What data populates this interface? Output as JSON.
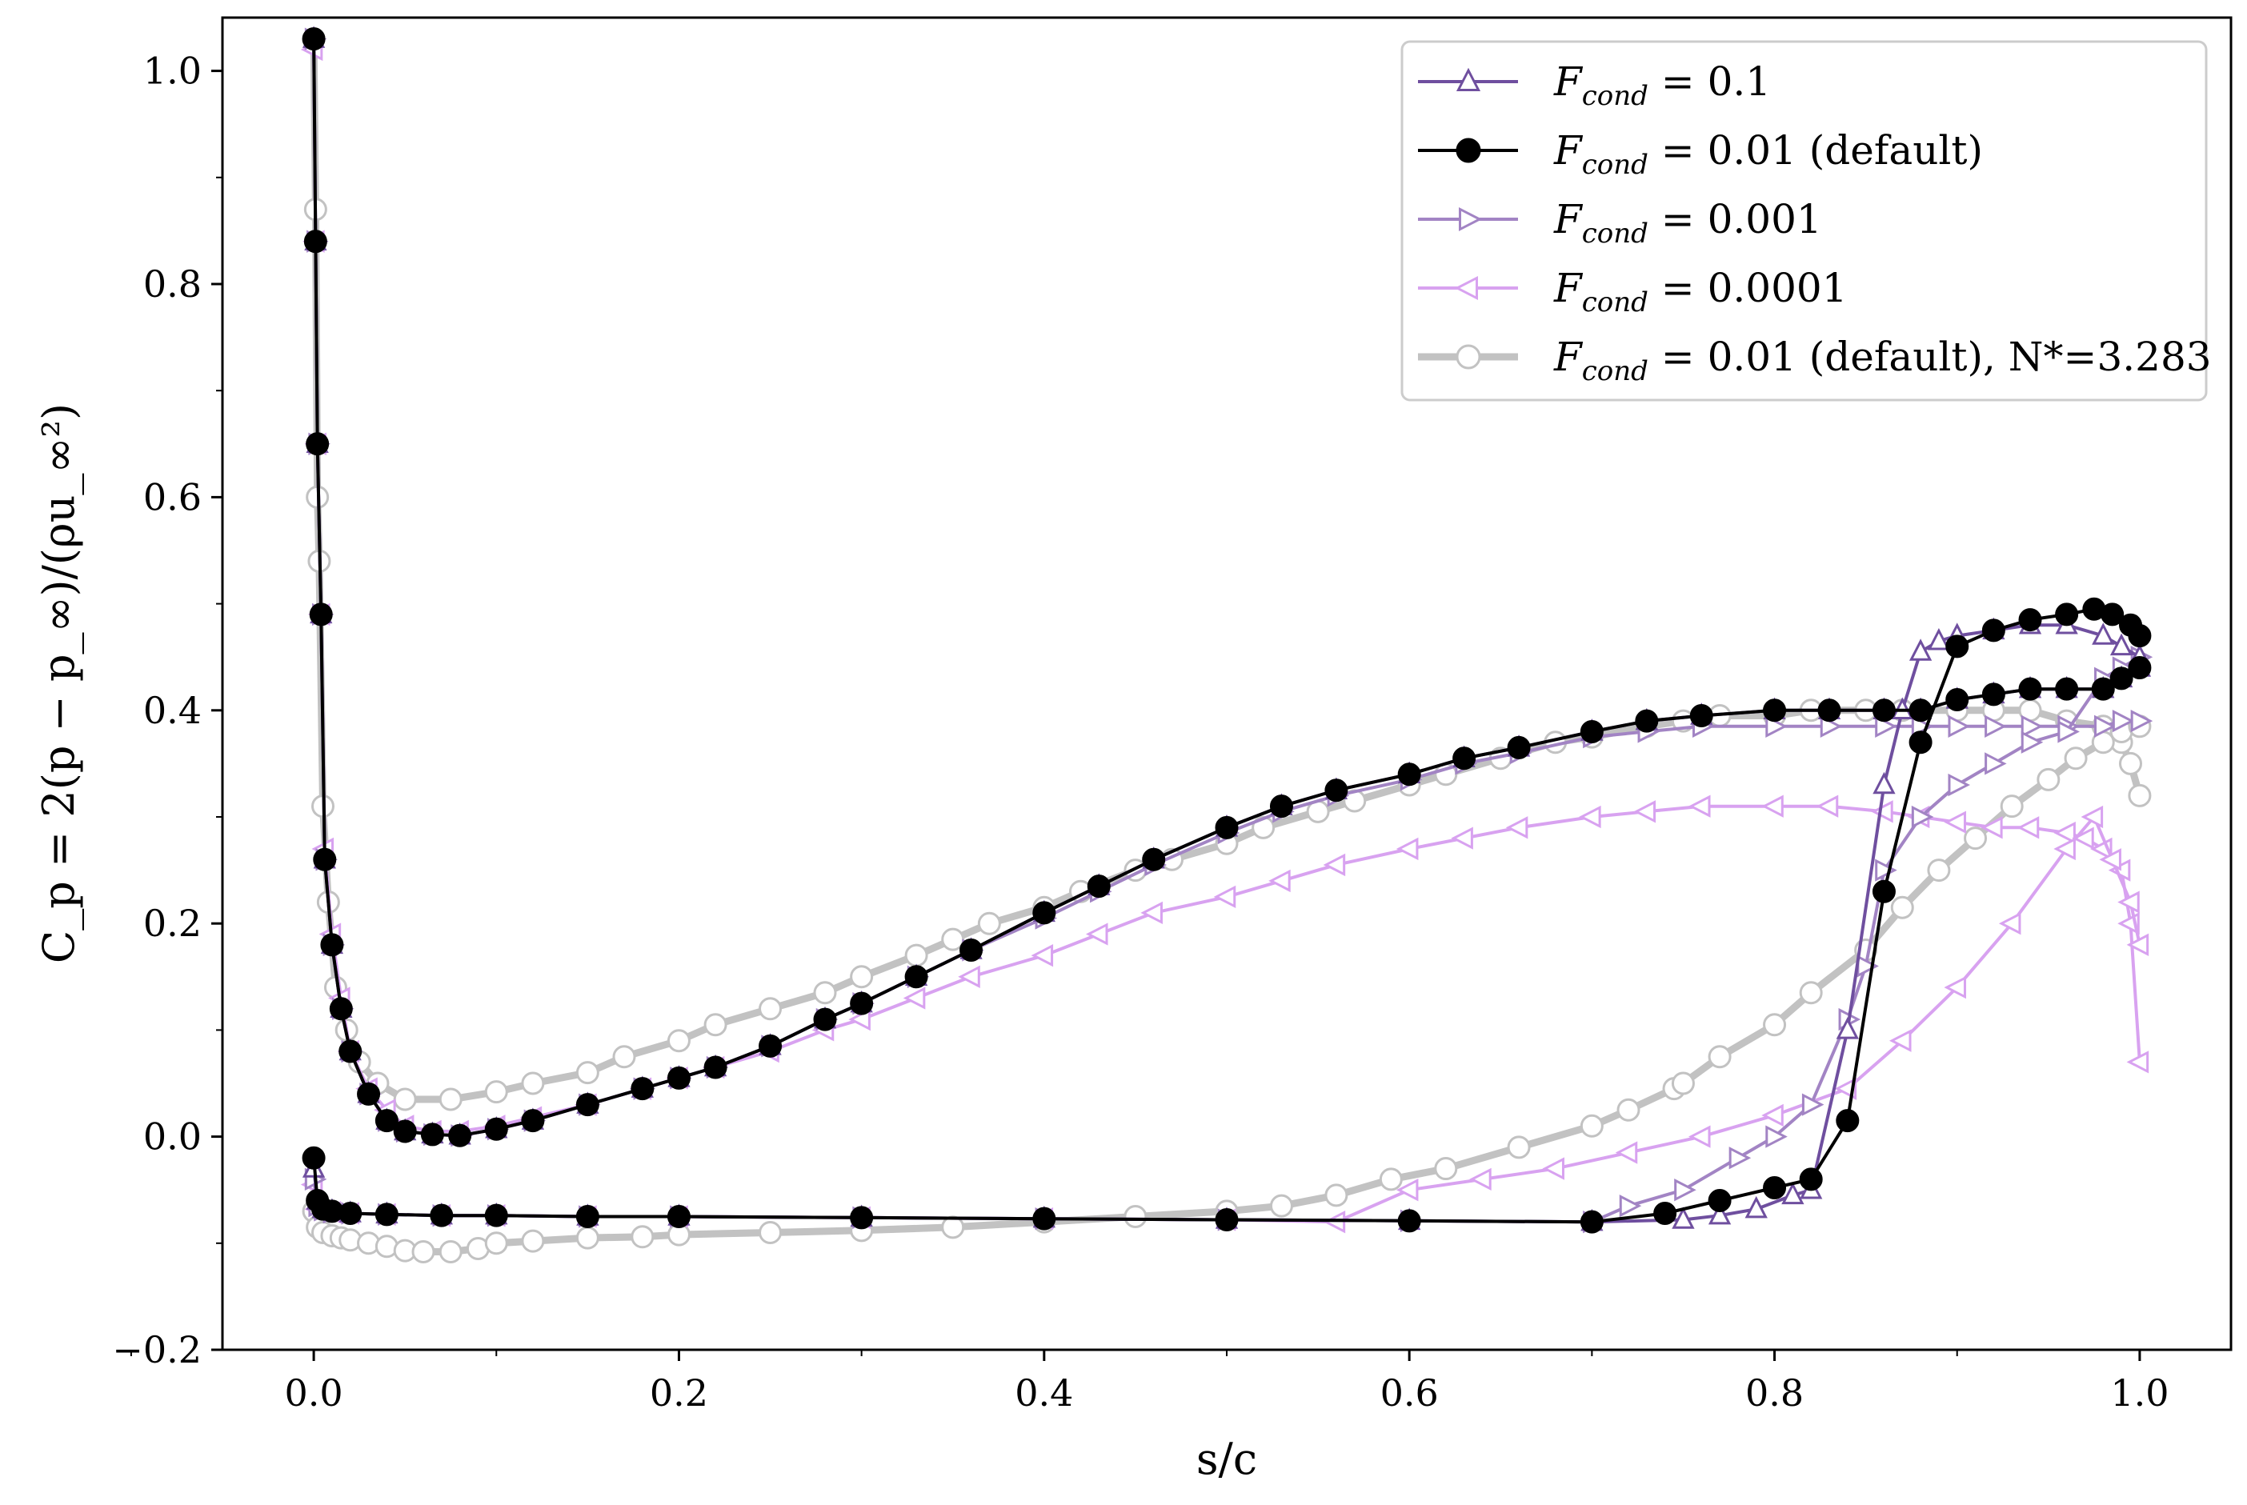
{
  "chart_data": {
    "type": "line",
    "title": "",
    "xlabel": "s/c",
    "ylabel": "C_p = 2(p − p_∞)/(ρu_∞²)",
    "xlim": [
      -0.05,
      1.05
    ],
    "ylim": [
      -0.2,
      1.05
    ],
    "xticks": [
      0.0,
      0.2,
      0.4,
      0.6,
      0.8,
      1.0
    ],
    "yticks": [
      -0.2,
      0.0,
      0.2,
      0.4,
      0.6,
      0.8,
      1.0
    ],
    "xtick_labels": [
      "0.0",
      "0.2",
      "0.4",
      "0.6",
      "0.8",
      "1.0"
    ],
    "ytick_labels": [
      "−0.2",
      "0.0",
      "0.2",
      "0.4",
      "0.6",
      "0.8",
      "1.0"
    ],
    "grid": false,
    "legend_position": "top-right",
    "series": [
      {
        "name": "F_cond = 0.1",
        "legend_prefix": "F",
        "legend_sub": "cond",
        "legend_rest": " = 0.1",
        "color": "#6f4f9f",
        "marker": "triangle-up",
        "marker_fill": "none",
        "linewidth": 4,
        "upper": {
          "x": [
            0.0,
            0.001,
            0.002,
            0.004,
            0.006,
            0.01,
            0.015,
            0.02,
            0.03,
            0.04,
            0.05,
            0.065,
            0.08,
            0.1,
            0.12,
            0.15,
            0.18,
            0.2,
            0.22,
            0.25,
            0.28,
            0.3,
            0.33,
            0.36,
            0.4,
            0.43,
            0.46,
            0.5,
            0.53,
            0.56,
            0.6,
            0.63,
            0.66,
            0.7,
            0.73,
            0.76,
            0.8,
            0.83,
            0.86,
            0.88,
            0.9,
            0.92,
            0.94,
            0.96,
            0.98,
            0.99,
            1.0
          ],
          "y": [
            1.03,
            0.84,
            0.65,
            0.49,
            0.26,
            0.18,
            0.12,
            0.08,
            0.04,
            0.015,
            0.005,
            0.002,
            0.001,
            0.007,
            0.015,
            0.03,
            0.045,
            0.055,
            0.065,
            0.085,
            0.11,
            0.125,
            0.15,
            0.175,
            0.21,
            0.235,
            0.26,
            0.29,
            0.31,
            0.325,
            0.34,
            0.355,
            0.365,
            0.38,
            0.39,
            0.395,
            0.4,
            0.4,
            0.4,
            0.4,
            0.41,
            0.415,
            0.42,
            0.42,
            0.42,
            0.43,
            0.44
          ]
        },
        "lower": {
          "x": [
            0.0,
            0.002,
            0.005,
            0.01,
            0.02,
            0.04,
            0.07,
            0.1,
            0.15,
            0.2,
            0.3,
            0.4,
            0.5,
            0.6,
            0.7,
            0.75,
            0.77,
            0.79,
            0.81,
            0.82,
            0.84,
            0.86,
            0.87,
            0.88,
            0.89,
            0.9,
            0.92,
            0.94,
            0.96,
            0.98,
            0.99,
            1.0
          ],
          "y": [
            -0.03,
            -0.06,
            -0.068,
            -0.07,
            -0.072,
            -0.073,
            -0.074,
            -0.074,
            -0.075,
            -0.075,
            -0.076,
            -0.077,
            -0.078,
            -0.079,
            -0.08,
            -0.078,
            -0.074,
            -0.068,
            -0.055,
            -0.05,
            0.1,
            0.33,
            0.4,
            0.455,
            0.465,
            0.47,
            0.475,
            0.48,
            0.48,
            0.47,
            0.46,
            0.45
          ]
        }
      },
      {
        "name": "F_cond = 0.01 (default)",
        "legend_prefix": "F",
        "legend_sub": "cond",
        "legend_rest": " = 0.01 (default)",
        "color": "#000000",
        "marker": "circle",
        "marker_fill": "filled",
        "linewidth": 4,
        "upper": {
          "x": [
            0.0,
            0.001,
            0.002,
            0.004,
            0.006,
            0.01,
            0.015,
            0.02,
            0.03,
            0.04,
            0.05,
            0.065,
            0.08,
            0.1,
            0.12,
            0.15,
            0.18,
            0.2,
            0.22,
            0.25,
            0.28,
            0.3,
            0.33,
            0.36,
            0.4,
            0.43,
            0.46,
            0.5,
            0.53,
            0.56,
            0.6,
            0.63,
            0.66,
            0.7,
            0.73,
            0.76,
            0.8,
            0.83,
            0.86,
            0.88,
            0.9,
            0.92,
            0.94,
            0.96,
            0.98,
            0.99,
            1.0
          ],
          "y": [
            1.03,
            0.84,
            0.65,
            0.49,
            0.26,
            0.18,
            0.12,
            0.08,
            0.04,
            0.015,
            0.005,
            0.002,
            0.001,
            0.007,
            0.015,
            0.03,
            0.045,
            0.055,
            0.065,
            0.085,
            0.11,
            0.125,
            0.15,
            0.175,
            0.21,
            0.235,
            0.26,
            0.29,
            0.31,
            0.325,
            0.34,
            0.355,
            0.365,
            0.38,
            0.39,
            0.395,
            0.4,
            0.4,
            0.4,
            0.4,
            0.41,
            0.415,
            0.42,
            0.42,
            0.42,
            0.43,
            0.44
          ]
        },
        "lower": {
          "x": [
            0.0,
            0.002,
            0.005,
            0.01,
            0.02,
            0.04,
            0.07,
            0.1,
            0.15,
            0.2,
            0.3,
            0.4,
            0.5,
            0.6,
            0.7,
            0.74,
            0.77,
            0.8,
            0.82,
            0.84,
            0.86,
            0.88,
            0.9,
            0.92,
            0.94,
            0.96,
            0.975,
            0.985,
            0.995,
            1.0
          ],
          "y": [
            -0.02,
            -0.06,
            -0.068,
            -0.07,
            -0.072,
            -0.073,
            -0.074,
            -0.074,
            -0.075,
            -0.075,
            -0.076,
            -0.077,
            -0.078,
            -0.079,
            -0.08,
            -0.072,
            -0.06,
            -0.048,
            -0.04,
            0.015,
            0.23,
            0.37,
            0.46,
            0.475,
            0.485,
            0.49,
            0.495,
            0.49,
            0.48,
            0.47
          ]
        }
      },
      {
        "name": "F_cond = 0.001",
        "legend_prefix": "F",
        "legend_sub": "cond",
        "legend_rest": " = 0.001",
        "color": "#a284c4",
        "marker": "triangle-right",
        "marker_fill": "none",
        "linewidth": 4,
        "upper": {
          "x": [
            0.0,
            0.001,
            0.002,
            0.004,
            0.006,
            0.01,
            0.015,
            0.02,
            0.03,
            0.04,
            0.05,
            0.065,
            0.08,
            0.1,
            0.12,
            0.15,
            0.18,
            0.2,
            0.22,
            0.25,
            0.28,
            0.3,
            0.33,
            0.36,
            0.4,
            0.43,
            0.46,
            0.5,
            0.53,
            0.56,
            0.6,
            0.63,
            0.66,
            0.7,
            0.73,
            0.76,
            0.8,
            0.83,
            0.86,
            0.88,
            0.9,
            0.92,
            0.94,
            0.96,
            0.98,
            0.99,
            1.0
          ],
          "y": [
            1.03,
            0.84,
            0.65,
            0.49,
            0.26,
            0.18,
            0.12,
            0.08,
            0.04,
            0.015,
            0.005,
            0.002,
            0.001,
            0.007,
            0.015,
            0.03,
            0.045,
            0.055,
            0.065,
            0.085,
            0.11,
            0.125,
            0.15,
            0.175,
            0.205,
            0.23,
            0.255,
            0.285,
            0.305,
            0.32,
            0.335,
            0.35,
            0.36,
            0.375,
            0.38,
            0.385,
            0.385,
            0.385,
            0.385,
            0.385,
            0.385,
            0.385,
            0.385,
            0.385,
            0.385,
            0.39,
            0.39
          ]
        },
        "lower": {
          "x": [
            0.0,
            0.002,
            0.005,
            0.01,
            0.02,
            0.04,
            0.07,
            0.1,
            0.15,
            0.2,
            0.3,
            0.4,
            0.5,
            0.6,
            0.7,
            0.72,
            0.75,
            0.78,
            0.8,
            0.82,
            0.84,
            0.85,
            0.86,
            0.88,
            0.9,
            0.92,
            0.94,
            0.96,
            0.98,
            0.99,
            1.0
          ],
          "y": [
            -0.04,
            -0.065,
            -0.069,
            -0.071,
            -0.072,
            -0.073,
            -0.074,
            -0.074,
            -0.075,
            -0.075,
            -0.076,
            -0.077,
            -0.078,
            -0.079,
            -0.08,
            -0.065,
            -0.05,
            -0.02,
            0.0,
            0.03,
            0.11,
            0.16,
            0.25,
            0.3,
            0.33,
            0.35,
            0.37,
            0.38,
            0.43,
            0.44,
            0.45
          ]
        }
      },
      {
        "name": "F_cond = 0.0001",
        "legend_prefix": "F",
        "legend_sub": "cond",
        "legend_rest": " = 0.0001",
        "color": "#d8a2f0",
        "marker": "triangle-left",
        "marker_fill": "none",
        "linewidth": 4,
        "upper": {
          "x": [
            0.0,
            0.001,
            0.002,
            0.004,
            0.006,
            0.01,
            0.015,
            0.02,
            0.03,
            0.04,
            0.05,
            0.065,
            0.08,
            0.1,
            0.12,
            0.15,
            0.18,
            0.2,
            0.22,
            0.25,
            0.28,
            0.3,
            0.33,
            0.36,
            0.4,
            0.43,
            0.46,
            0.5,
            0.53,
            0.56,
            0.6,
            0.63,
            0.66,
            0.7,
            0.73,
            0.76,
            0.8,
            0.83,
            0.86,
            0.88,
            0.9,
            0.92,
            0.94,
            0.96,
            0.97,
            0.98,
            0.99,
            0.995,
            1.0
          ],
          "y": [
            1.02,
            0.84,
            0.65,
            0.49,
            0.27,
            0.19,
            0.13,
            0.08,
            0.045,
            0.025,
            0.01,
            0.005,
            0.005,
            0.01,
            0.018,
            0.03,
            0.045,
            0.055,
            0.065,
            0.08,
            0.1,
            0.11,
            0.13,
            0.15,
            0.17,
            0.19,
            0.21,
            0.225,
            0.24,
            0.255,
            0.27,
            0.28,
            0.29,
            0.3,
            0.305,
            0.31,
            0.31,
            0.31,
            0.305,
            0.3,
            0.295,
            0.29,
            0.29,
            0.285,
            0.28,
            0.27,
            0.25,
            0.2,
            0.07
          ]
        },
        "lower": {
          "x": [
            0.0,
            0.002,
            0.005,
            0.01,
            0.02,
            0.04,
            0.07,
            0.1,
            0.15,
            0.2,
            0.3,
            0.4,
            0.5,
            0.56,
            0.6,
            0.64,
            0.68,
            0.72,
            0.76,
            0.8,
            0.84,
            0.87,
            0.9,
            0.93,
            0.96,
            0.975,
            0.985,
            0.995,
            1.0
          ],
          "y": [
            -0.045,
            -0.068,
            -0.07,
            -0.071,
            -0.072,
            -0.073,
            -0.074,
            -0.074,
            -0.075,
            -0.075,
            -0.076,
            -0.077,
            -0.078,
            -0.08,
            -0.05,
            -0.04,
            -0.03,
            -0.015,
            0.0,
            0.02,
            0.045,
            0.09,
            0.14,
            0.2,
            0.27,
            0.3,
            0.26,
            0.22,
            0.18
          ]
        }
      },
      {
        "name": "F_cond = 0.01 (default), N*=3.283",
        "legend_prefix": "F",
        "legend_sub": "cond",
        "legend_rest": " = 0.01 (default), N*=3.283",
        "color": "#c2c2c2",
        "marker": "circle",
        "marker_fill": "none",
        "linewidth": 9,
        "upper": {
          "x": [
            0.0,
            0.001,
            0.002,
            0.003,
            0.005,
            0.008,
            0.012,
            0.018,
            0.025,
            0.035,
            0.05,
            0.075,
            0.1,
            0.12,
            0.15,
            0.17,
            0.2,
            0.22,
            0.25,
            0.28,
            0.3,
            0.33,
            0.35,
            0.37,
            0.4,
            0.42,
            0.45,
            0.47,
            0.5,
            0.52,
            0.55,
            0.57,
            0.6,
            0.62,
            0.65,
            0.68,
            0.7,
            0.73,
            0.75,
            0.77,
            0.8,
            0.82,
            0.85,
            0.87,
            0.9,
            0.92,
            0.94,
            0.96,
            0.98,
            0.99,
            0.995,
            1.0
          ],
          "y": [
            1.03,
            0.87,
            0.6,
            0.54,
            0.31,
            0.22,
            0.14,
            0.1,
            0.07,
            0.05,
            0.035,
            0.035,
            0.042,
            0.05,
            0.06,
            0.075,
            0.09,
            0.105,
            0.12,
            0.135,
            0.15,
            0.17,
            0.185,
            0.2,
            0.215,
            0.23,
            0.25,
            0.26,
            0.275,
            0.29,
            0.305,
            0.315,
            0.33,
            0.34,
            0.355,
            0.37,
            0.375,
            0.385,
            0.39,
            0.395,
            0.395,
            0.4,
            0.4,
            0.4,
            0.4,
            0.4,
            0.4,
            0.39,
            0.385,
            0.37,
            0.35,
            0.32
          ]
        },
        "lower": {
          "x": [
            0.0,
            0.002,
            0.005,
            0.01,
            0.015,
            0.02,
            0.03,
            0.04,
            0.05,
            0.06,
            0.075,
            0.09,
            0.1,
            0.12,
            0.15,
            0.18,
            0.2,
            0.25,
            0.3,
            0.35,
            0.4,
            0.45,
            0.5,
            0.53,
            0.56,
            0.59,
            0.62,
            0.66,
            0.7,
            0.72,
            0.745,
            0.75,
            0.77,
            0.8,
            0.82,
            0.85,
            0.87,
            0.89,
            0.91,
            0.93,
            0.95,
            0.965,
            0.98,
            0.99,
            1.0
          ],
          "y": [
            -0.07,
            -0.085,
            -0.09,
            -0.093,
            -0.095,
            -0.097,
            -0.1,
            -0.103,
            -0.107,
            -0.108,
            -0.108,
            -0.105,
            -0.1,
            -0.098,
            -0.095,
            -0.094,
            -0.092,
            -0.09,
            -0.088,
            -0.085,
            -0.08,
            -0.075,
            -0.07,
            -0.065,
            -0.055,
            -0.04,
            -0.03,
            -0.01,
            0.01,
            0.025,
            0.045,
            0.05,
            0.075,
            0.105,
            0.135,
            0.175,
            0.215,
            0.25,
            0.28,
            0.31,
            0.335,
            0.355,
            0.37,
            0.38,
            0.385
          ]
        }
      }
    ]
  }
}
